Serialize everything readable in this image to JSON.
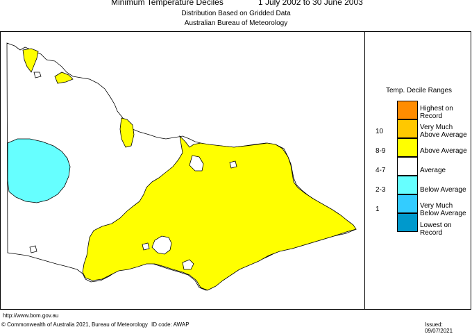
{
  "header": {
    "title": "Minimum Temperature Deciles",
    "period": "1 July 2002 to 30 June 2003",
    "subtitle1": "Distribution Based on Gridded Data",
    "subtitle2": "Australian Bureau of Meteorology"
  },
  "legend": {
    "title": "Temp. Decile Ranges",
    "items": [
      {
        "range": "",
        "label": "Highest on Record",
        "line1": "Highest on",
        "line2": "Record",
        "color": "#ff8c00"
      },
      {
        "range": "10",
        "label": "Very Much Above Average",
        "line1": "Very Much",
        "line2": "Above Average",
        "color": "#ffc800"
      },
      {
        "range": "8-9",
        "label": "Above Average",
        "line1": "Above Average",
        "line2": "",
        "color": "#ffff00"
      },
      {
        "range": "4-7",
        "label": "Average",
        "line1": "Average",
        "line2": "",
        "color": "#ffffff"
      },
      {
        "range": "2-3",
        "label": "Below Average",
        "line1": "Below Average",
        "line2": "",
        "color": "#66ffff"
      },
      {
        "range": "1",
        "label": "Very Much Below Average",
        "line1": "Very Much",
        "line2": "Below Average",
        "color": "#33ccff"
      },
      {
        "range": "",
        "label": "Lowest on Record",
        "line1": "Lowest on",
        "line2": "Record",
        "color": "#0099cc"
      }
    ]
  },
  "footer": {
    "url": "http://www.bom.gov.au",
    "copyright": "© Commonwealth of Australia 2021, Bureau of Meteorology",
    "id_code": "ID code: AWAP",
    "issued": "Issued: 09/07/2021"
  }
}
